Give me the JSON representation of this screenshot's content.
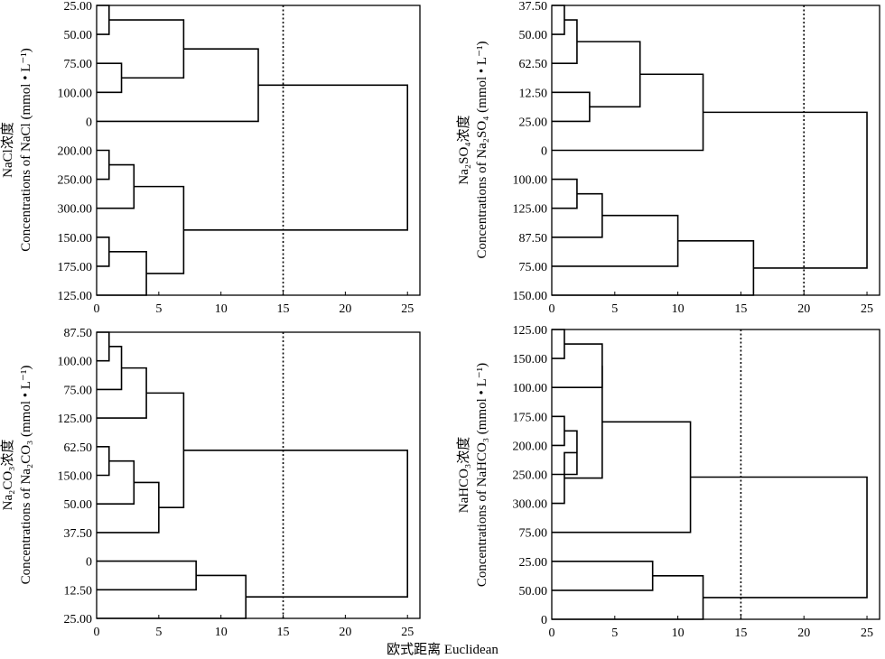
{
  "figure": {
    "shared_xlabel": "欧式距离 Euclidean"
  },
  "chart_data": [
    {
      "type": "dendrogram",
      "panel": "top-left",
      "ylabel_zh": "NaCl浓度",
      "ylabel_en": "Concentrations of NaCl (mmol • L⁻¹)",
      "xlim": [
        0,
        26
      ],
      "xticks": [
        0,
        5,
        10,
        15,
        20,
        25
      ],
      "cutoff": 15,
      "leaves": [
        "25.00",
        "50.00",
        "75.00",
        "100.00",
        "0",
        "200.00",
        "250.00",
        "300.00",
        "150.00",
        "175.00",
        "125.00"
      ],
      "merges": [
        {
          "a": 0,
          "b": 1,
          "height": 1
        },
        {
          "a": 2,
          "b": 3,
          "height": 2
        },
        {
          "a": "m0",
          "b": "m1",
          "height": 7
        },
        {
          "a": "m2",
          "b": 4,
          "height": 13
        },
        {
          "a": 5,
          "b": 6,
          "height": 1
        },
        {
          "a": "m4",
          "b": 7,
          "height": 3
        },
        {
          "a": 8,
          "b": 9,
          "height": 1
        },
        {
          "a": "m6",
          "b": 10,
          "height": 4
        },
        {
          "a": "m5",
          "b": "m7",
          "height": 7
        },
        {
          "a": "m3",
          "b": "m8",
          "height": 25
        }
      ]
    },
    {
      "type": "dendrogram",
      "panel": "top-right",
      "ylabel_zh": "Na₂SO₄浓度",
      "ylabel_en": "Concentrations of Na₂SO₄ (mmol • L⁻¹)",
      "xlim": [
        0,
        26
      ],
      "xticks": [
        0,
        5,
        10,
        15,
        20,
        25
      ],
      "cutoff": 20,
      "leaves": [
        "37.50",
        "50.00",
        "62.50",
        "12.50",
        "25.00",
        "0",
        "100.00",
        "125.00",
        "87.50",
        "75.00",
        "150.00"
      ],
      "merges": [
        {
          "a": 0,
          "b": 1,
          "height": 1
        },
        {
          "a": "m0",
          "b": 2,
          "height": 2
        },
        {
          "a": 3,
          "b": 4,
          "height": 3
        },
        {
          "a": "m1",
          "b": "m2",
          "height": 7
        },
        {
          "a": "m3",
          "b": 5,
          "height": 12
        },
        {
          "a": 6,
          "b": 7,
          "height": 2
        },
        {
          "a": "m5",
          "b": 8,
          "height": 4
        },
        {
          "a": "m6",
          "b": 9,
          "height": 10
        },
        {
          "a": "m7",
          "b": 10,
          "height": 16
        },
        {
          "a": "m4",
          "b": "m8",
          "height": 25
        }
      ]
    },
    {
      "type": "dendrogram",
      "panel": "bottom-left",
      "ylabel_zh": "Na₂CO₃浓度",
      "ylabel_en": "Concentrations of Na₂CO₃ (mmol • L⁻¹)",
      "xlim": [
        0,
        26
      ],
      "xticks": [
        0,
        5,
        10,
        15,
        20,
        25
      ],
      "cutoff": 15,
      "leaves": [
        "87.50",
        "100.00",
        "75.00",
        "125.00",
        "62.50",
        "150.00",
        "50.00",
        "37.50",
        "0",
        "12.50",
        "25.00"
      ],
      "merges": [
        {
          "a": 0,
          "b": 1,
          "height": 1
        },
        {
          "a": "m0",
          "b": 2,
          "height": 2
        },
        {
          "a": "m1",
          "b": 3,
          "height": 4
        },
        {
          "a": 4,
          "b": 5,
          "height": 1
        },
        {
          "a": "m3",
          "b": 6,
          "height": 3
        },
        {
          "a": "m4",
          "b": 7,
          "height": 5
        },
        {
          "a": "m2",
          "b": "m5",
          "height": 7
        },
        {
          "a": 8,
          "b": 9,
          "height": 8
        },
        {
          "a": "m7",
          "b": 10,
          "height": 12
        },
        {
          "a": "m6",
          "b": "m8",
          "height": 25
        }
      ]
    },
    {
      "type": "dendrogram",
      "panel": "bottom-right",
      "ylabel_zh": "NaHCO₃浓度",
      "ylabel_en": "Concentrations of NaHCO₃ (mmol • L⁻¹)",
      "xlim": [
        0,
        26
      ],
      "xticks": [
        0,
        5,
        10,
        15,
        20,
        25
      ],
      "cutoff": 15,
      "leaves": [
        "125.00",
        "150.00",
        "100.00",
        "175.00",
        "200.00",
        "250.00",
        "300.00",
        "75.00",
        "25.00",
        "50.00",
        "0"
      ],
      "merges": [
        {
          "a": 0,
          "b": 1,
          "height": 1
        },
        {
          "a": "m0",
          "b": 2,
          "height": 4
        },
        {
          "a": 3,
          "b": 4,
          "height": 1
        },
        {
          "a": "m2",
          "b": 5,
          "height": 2
        },
        {
          "a": "m3",
          "b": 6,
          "height": 1
        },
        {
          "a": "m1",
          "b": "m4",
          "height": 4
        },
        {
          "a": "m5",
          "b": 7,
          "height": 11
        },
        {
          "a": 8,
          "b": 9,
          "height": 8
        },
        {
          "a": "m7",
          "b": 10,
          "height": 12
        },
        {
          "a": "m6",
          "b": "m8",
          "height": 25
        }
      ]
    }
  ]
}
